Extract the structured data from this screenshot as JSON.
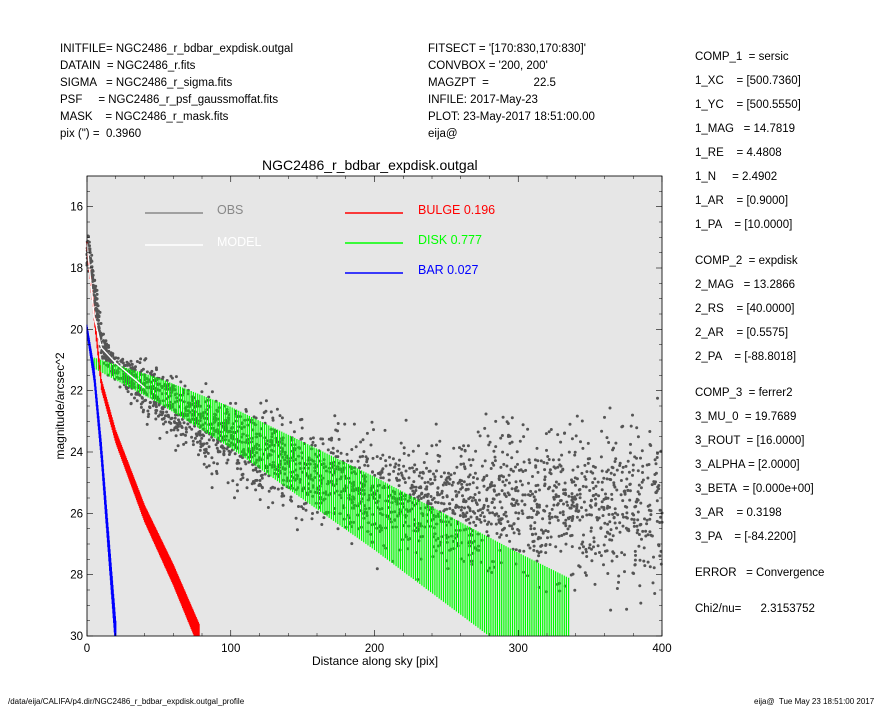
{
  "header_left": [
    "INITFILE= NGC2486_r_bdbar_expdisk.outgal",
    "DATAIN  = NGC2486_r.fits",
    "SIGMA   = NGC2486_r_sigma.fits",
    "PSF     = NGC2486_r_psf_gaussmoffat.fits",
    "MASK    = NGC2486_r_mask.fits",
    "pix (\") =  0.3960"
  ],
  "header_mid": [
    "FITSECT = '[170:830,170:830]'",
    "CONVBOX = '200, 200'",
    "MAGZPT  =              22.5",
    "INFILE: 2017-May-23",
    "PLOT: 23-May-2017 18:51:00.00",
    "eija@"
  ],
  "params": [
    "COMP_1  = sersic",
    "1_XC    = [500.7360]",
    "1_YC    = [500.5550]",
    "1_MAG   = 14.7819",
    "1_RE    = 4.4808",
    "1_N     = 2.4902",
    "1_AR    = [0.9000]",
    "1_PA    = [10.0000]",
    "COMP_2  = expdisk",
    "2_MAG   = 13.2866",
    "2_RS    = [40.0000]",
    "2_AR    = [0.5575]",
    "2_PA    = [-88.8018]",
    "COMP_3  = ferrer2",
    "3_MU_0  = 19.7689",
    "3_ROUT  = [16.0000]",
    "3_ALPHA = [2.0000]",
    "3_BETA  = [0.000e+00]",
    "3_AR    = 0.3198",
    "3_PA    = [-84.2200]",
    "ERROR   = Convergence",
    "Chi2/nu=      2.3153752"
  ],
  "footer_left": "/data/eija/CALIFA/p4.dir/NGC2486_r_bdbar_expdisk.outgal_profile",
  "footer_right": "eija@  Tue May 23 18:51:00 2017",
  "chart_data": {
    "type": "scatter",
    "title": "NGC2486_r_bdbar_expdisk.outgal",
    "xlabel": "Distance along sky [pix]",
    "ylabel": "magnitude/arcsec^2",
    "xlim": [
      0,
      400
    ],
    "ylim": [
      30,
      15
    ],
    "y_inverted": true,
    "xticks": [
      0,
      100,
      200,
      300,
      400
    ],
    "yticks": [
      16,
      18,
      20,
      22,
      24,
      26,
      28,
      30
    ],
    "background_color": "#e6e6e6",
    "legend": [
      {
        "label": "OBS",
        "color": "#888888"
      },
      {
        "label": "MODEL",
        "color": "#ffffff"
      },
      {
        "label": "BULGE",
        "value": "0.196",
        "color": "#ff0000"
      },
      {
        "label": "DISK",
        "value": "0.777",
        "color": "#00ff00"
      },
      {
        "label": "BAR",
        "value": "0.027",
        "color": "#0000ff"
      }
    ],
    "series": [
      {
        "name": "OBS",
        "description": "observed profile, scatter",
        "x": [
          2,
          10,
          20,
          40,
          60,
          80,
          100,
          150,
          200,
          250,
          300,
          350,
          400
        ],
        "y": [
          17.5,
          20.5,
          21.3,
          21.9,
          22.5,
          23.2,
          23.6,
          24.6,
          25.4,
          25.7,
          25.6,
          25.7,
          25.8
        ]
      },
      {
        "name": "MODEL",
        "x": [
          0,
          5,
          10,
          20,
          40
        ],
        "y": [
          17.2,
          19.6,
          20.6,
          21.1,
          21.9
        ]
      },
      {
        "name": "BULGE",
        "x": [
          0,
          10,
          20,
          40,
          60,
          78
        ],
        "y": [
          17.3,
          21.8,
          23.5,
          26.0,
          28.0,
          30.0
        ]
      },
      {
        "name": "DISK",
        "x": [
          5,
          50,
          100,
          150,
          200,
          250,
          300,
          335
        ],
        "y": [
          21.1,
          22.0,
          23.2,
          24.6,
          26.0,
          27.5,
          29.0,
          30.0
        ]
      },
      {
        "name": "BAR",
        "x": [
          0,
          5,
          10,
          15,
          20
        ],
        "y": [
          20.0,
          21.5,
          24.0,
          27.0,
          30.0
        ]
      }
    ]
  }
}
